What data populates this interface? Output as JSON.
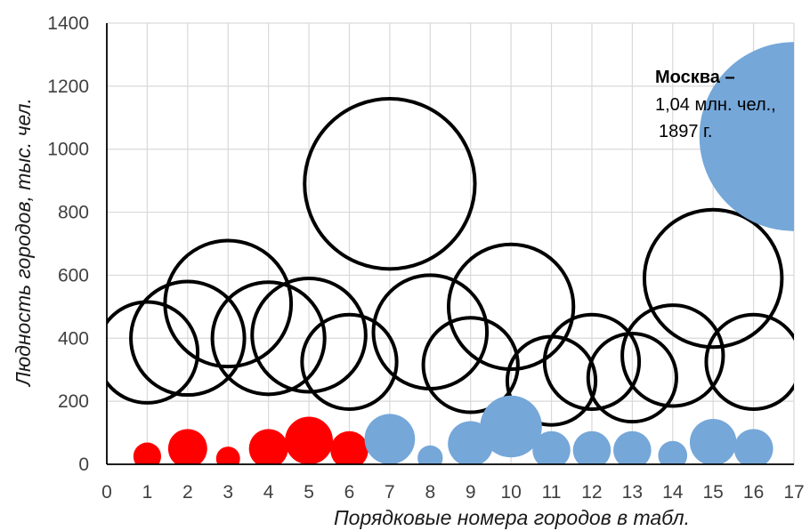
{
  "chart_data": {
    "type": "bubble",
    "xlabel": "Порядковые номера городов в табл.",
    "ylabel": "Людность городов, тыс. чел.",
    "xlim": [
      0,
      17
    ],
    "ylim": [
      0,
      1400
    ],
    "xticks": [
      "0",
      "1",
      "2",
      "3",
      "4",
      "5",
      "6",
      "7",
      "8",
      "9",
      "10",
      "11",
      "12",
      "13",
      "14",
      "15",
      "16",
      "17"
    ],
    "yticks": [
      "0",
      "200",
      "400",
      "600",
      "800",
      "1000",
      "1200",
      "1400"
    ],
    "grid": true,
    "colors": {
      "red": "#ff0000",
      "blue": "#75a7d9",
      "outline": "#000000"
    },
    "series": [
      {
        "style": "outline",
        "points": [
          {
            "x": 1,
            "y": 355,
            "r": 160
          },
          {
            "x": 2,
            "y": 400,
            "r": 180
          },
          {
            "x": 3,
            "y": 510,
            "r": 200
          },
          {
            "x": 4,
            "y": 400,
            "r": 178
          },
          {
            "x": 5,
            "y": 410,
            "r": 180
          },
          {
            "x": 6,
            "y": 325,
            "r": 150
          },
          {
            "x": 7,
            "y": 890,
            "r": 270
          },
          {
            "x": 8,
            "y": 420,
            "r": 180
          },
          {
            "x": 9,
            "y": 315,
            "r": 150
          },
          {
            "x": 10,
            "y": 500,
            "r": 198
          },
          {
            "x": 11,
            "y": 265,
            "r": 140
          },
          {
            "x": 12,
            "y": 325,
            "r": 150
          },
          {
            "x": 13,
            "y": 275,
            "r": 140
          },
          {
            "x": 14,
            "y": 345,
            "r": 160
          },
          {
            "x": 15,
            "y": 590,
            "r": 218
          },
          {
            "x": 16,
            "y": 325,
            "r": 150
          }
        ]
      },
      {
        "style": "red",
        "points": [
          {
            "x": 1,
            "y": 25,
            "r": 44
          },
          {
            "x": 2,
            "y": 50,
            "r": 62
          },
          {
            "x": 3,
            "y": 18,
            "r": 38
          },
          {
            "x": 4,
            "y": 50,
            "r": 62
          },
          {
            "x": 5,
            "y": 75,
            "r": 76
          },
          {
            "x": 6,
            "y": 45,
            "r": 60
          }
        ]
      },
      {
        "style": "blue",
        "points": [
          {
            "x": 7,
            "y": 80,
            "r": 80
          },
          {
            "x": 8,
            "y": 20,
            "r": 40
          },
          {
            "x": 9,
            "y": 65,
            "r": 72
          },
          {
            "x": 10,
            "y": 120,
            "r": 98
          },
          {
            "x": 11,
            "y": 45,
            "r": 60
          },
          {
            "x": 12,
            "y": 45,
            "r": 60
          },
          {
            "x": 13,
            "y": 45,
            "r": 60
          },
          {
            "x": 14,
            "y": 28,
            "r": 46
          },
          {
            "x": 15,
            "y": 70,
            "r": 74
          },
          {
            "x": 16,
            "y": 50,
            "r": 62
          },
          {
            "x": 17,
            "y": 1040,
            "r": 300
          }
        ]
      }
    ],
    "annotation": {
      "line1": "Москва –",
      "line2": "1,04 млн. чел.,",
      "line3": "1897 г."
    }
  }
}
